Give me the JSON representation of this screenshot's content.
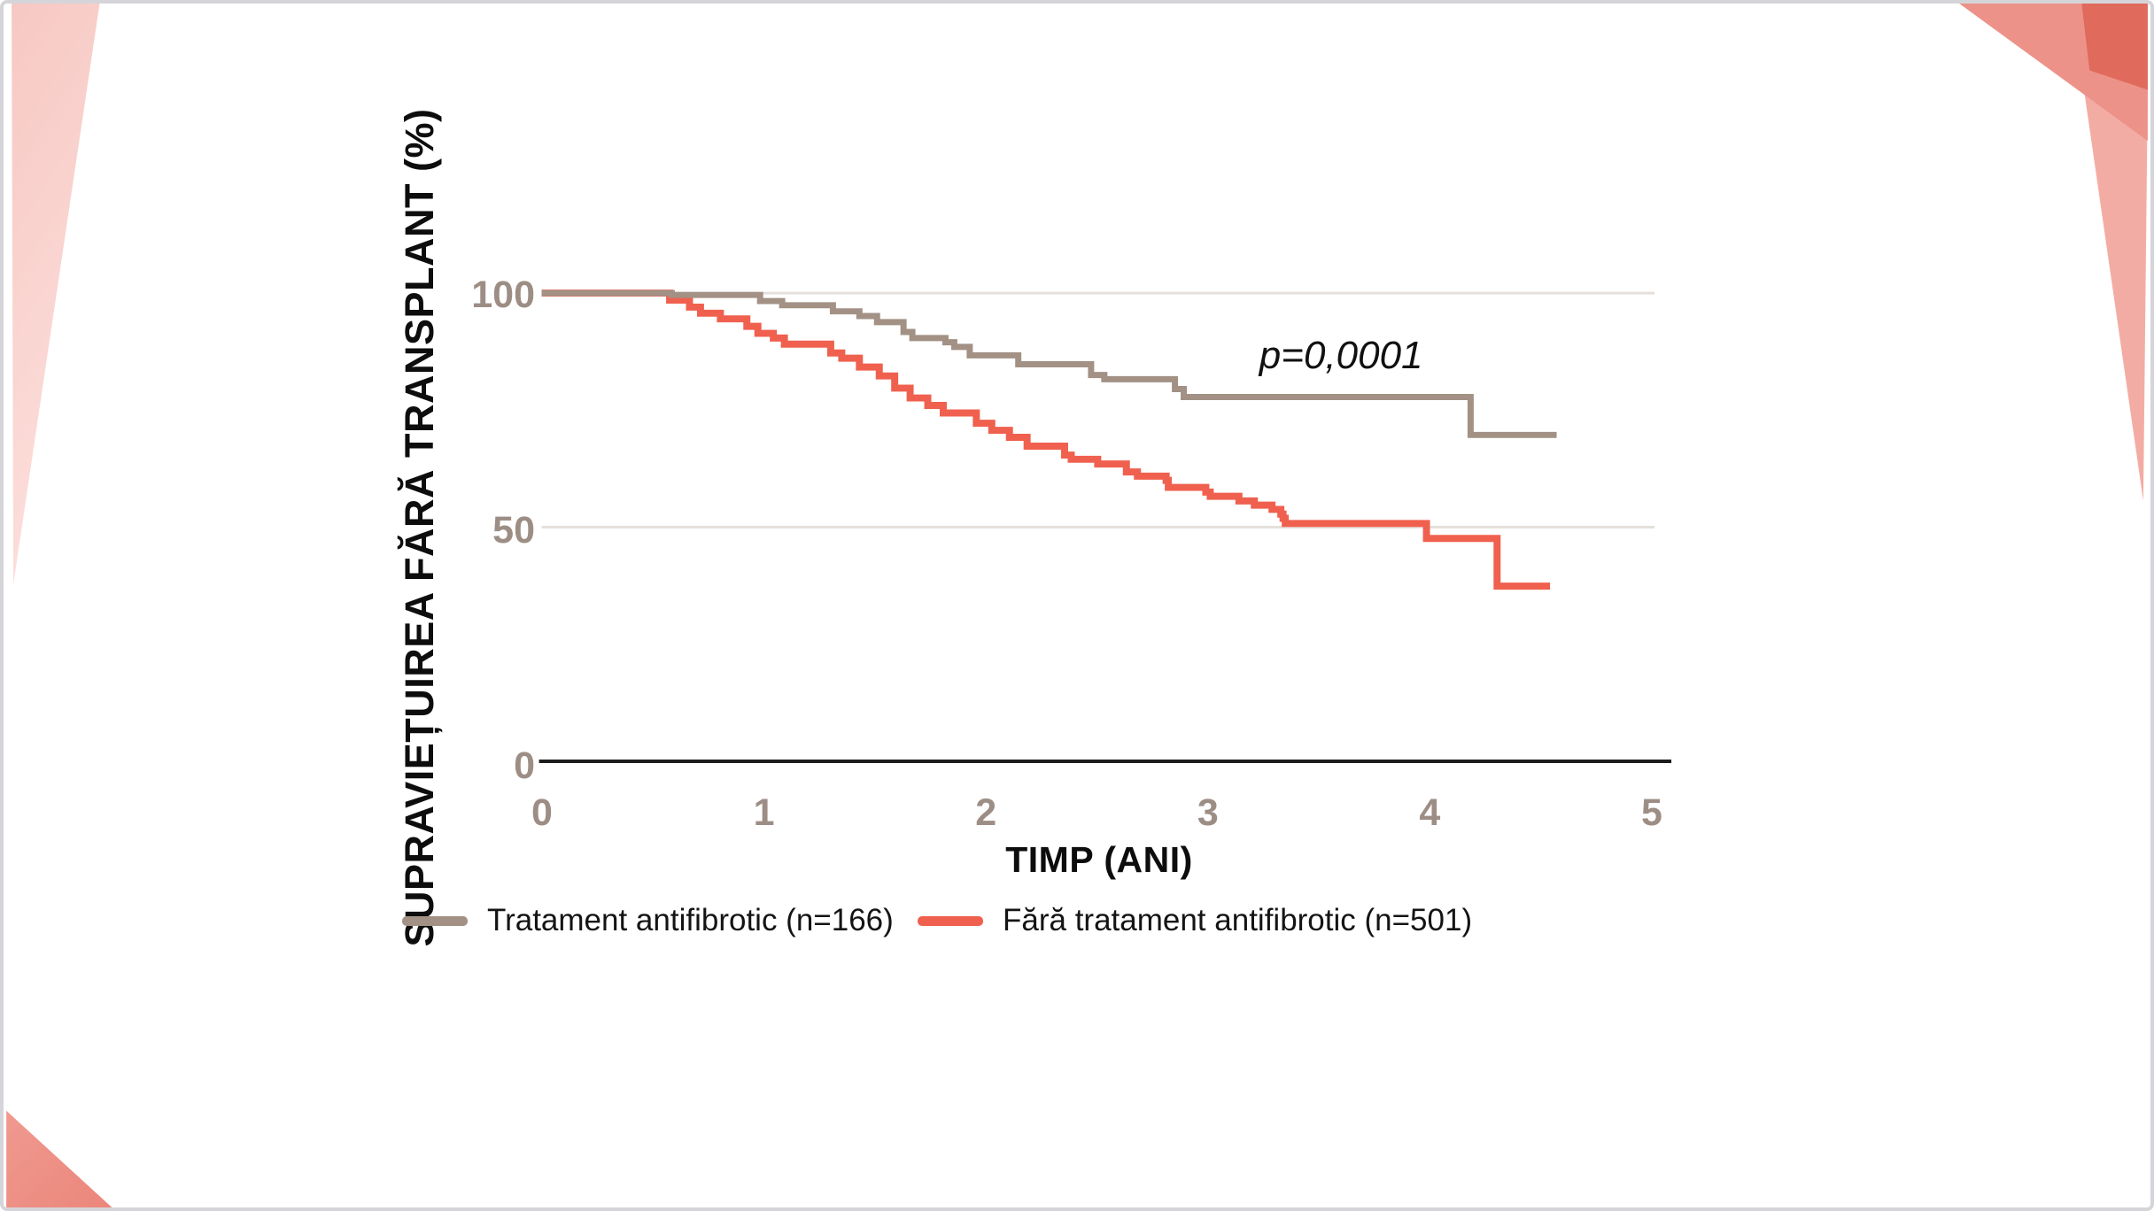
{
  "chart_data": {
    "type": "line",
    "subtype": "kaplan-meier-step",
    "title": "",
    "xlabel": "TIMP (ANI)",
    "ylabel": "SUPRAVIEȚUIREA FĂRĂ TRANSPLANT (%)",
    "xlim": [
      0,
      5
    ],
    "ylim": [
      0,
      100
    ],
    "x_ticks": [
      0,
      1,
      2,
      3,
      4,
      5
    ],
    "y_ticks": [
      100,
      50,
      0
    ],
    "gridlines_y": [
      100,
      50
    ],
    "grid_on": true,
    "legend_position": "bottom",
    "annotation": {
      "text": "p=0,0001",
      "x": 3.6,
      "y": 87
    },
    "axis_color": "#1c1c1c",
    "grid_color": "#e6e0dc",
    "tick_color": "#9d8e85",
    "series": [
      {
        "name": "Tratament antifibrotic (n=166)",
        "color": "#a29184",
        "start": [
          0,
          100
        ],
        "end_t": 4.6,
        "steps": [
          [
            0.59,
            99.6
          ],
          [
            0.99,
            98.3
          ],
          [
            1.09,
            97.4
          ],
          [
            1.32,
            96.1
          ],
          [
            1.44,
            95.1
          ],
          [
            1.52,
            93.8
          ],
          [
            1.64,
            91.7
          ],
          [
            1.68,
            90.4
          ],
          [
            1.83,
            89.5
          ],
          [
            1.87,
            88.5
          ],
          [
            1.94,
            86.7
          ],
          [
            2.16,
            84.8
          ],
          [
            2.49,
            82.5
          ],
          [
            2.55,
            81.6
          ],
          [
            2.87,
            79.5
          ],
          [
            2.91,
            77.8
          ],
          [
            4.21,
            69.7
          ]
        ]
      },
      {
        "name": "Fără tratament antifibrotic (n=501)",
        "color": "#f0604e",
        "start": [
          0,
          100
        ],
        "end_t": 4.57,
        "steps": [
          [
            0.58,
            98.5
          ],
          [
            0.67,
            97.0
          ],
          [
            0.72,
            95.7
          ],
          [
            0.81,
            94.5
          ],
          [
            0.93,
            92.9
          ],
          [
            0.98,
            91.4
          ],
          [
            1.05,
            90.4
          ],
          [
            1.1,
            89.1
          ],
          [
            1.31,
            87.2
          ],
          [
            1.36,
            86.1
          ],
          [
            1.44,
            84.2
          ],
          [
            1.53,
            82.3
          ],
          [
            1.6,
            79.7
          ],
          [
            1.67,
            77.6
          ],
          [
            1.75,
            76.0
          ],
          [
            1.82,
            74.4
          ],
          [
            1.97,
            72.2
          ],
          [
            2.04,
            70.7
          ],
          [
            2.12,
            69.2
          ],
          [
            2.2,
            67.3
          ],
          [
            2.37,
            65.4
          ],
          [
            2.4,
            64.5
          ],
          [
            2.52,
            63.5
          ],
          [
            2.65,
            61.8
          ],
          [
            2.7,
            60.9
          ],
          [
            2.83,
            60.0
          ],
          [
            2.84,
            58.5
          ],
          [
            3.01,
            57.5
          ],
          [
            3.03,
            56.6
          ],
          [
            3.16,
            55.6
          ],
          [
            3.23,
            54.7
          ],
          [
            3.31,
            53.8
          ],
          [
            3.35,
            52.8
          ],
          [
            3.36,
            51.9
          ],
          [
            3.37,
            50.8
          ],
          [
            4.01,
            47.6
          ],
          [
            4.33,
            37.4
          ]
        ]
      }
    ]
  },
  "decor": {
    "pink_light": "#f8ccc8",
    "pink_lighter": "#fce0dd",
    "salmon_corner": "#ee9187",
    "salmon_band": "#ec9288",
    "salmon_tail": "#f3aca3",
    "red_dark": "#e06a5c"
  }
}
